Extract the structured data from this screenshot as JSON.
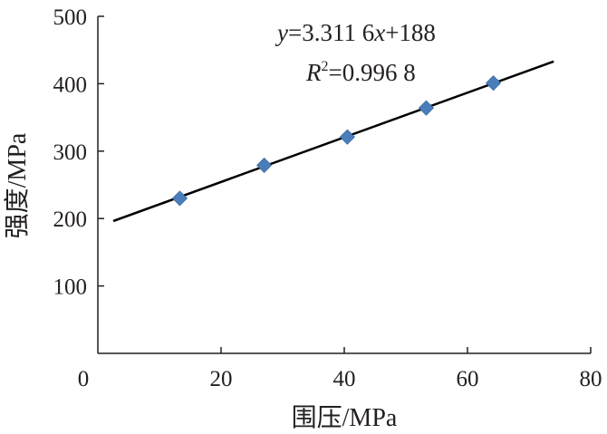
{
  "chart_data": {
    "type": "scatter",
    "xlabel": "围压/MPa",
    "ylabel": "强度/MPa",
    "xlim": [
      0,
      80
    ],
    "ylim": [
      0,
      500
    ],
    "x_ticks": [
      0,
      20,
      40,
      60,
      80
    ],
    "y_ticks": [
      100,
      200,
      300,
      400,
      500
    ],
    "series": [
      {
        "marker": "diamond",
        "color": "#4a7ebb",
        "x": [
          13.3,
          27.0,
          40.5,
          53.3,
          64.2
        ],
        "y": [
          230,
          279,
          321,
          364,
          401
        ]
      }
    ],
    "trendline": {
      "slope": 3.3116,
      "intercept": 188,
      "x_range": [
        2.5,
        74
      ],
      "color": "#000000",
      "equation_text": {
        "y_var": "y",
        "rhs": "=3.311 6",
        "x_var": "x",
        "tail": "+188"
      },
      "r2_text": {
        "r_var": "R",
        "sup": "2",
        "rhs": "=0.996 8"
      }
    },
    "grid": false,
    "legend": "none"
  }
}
